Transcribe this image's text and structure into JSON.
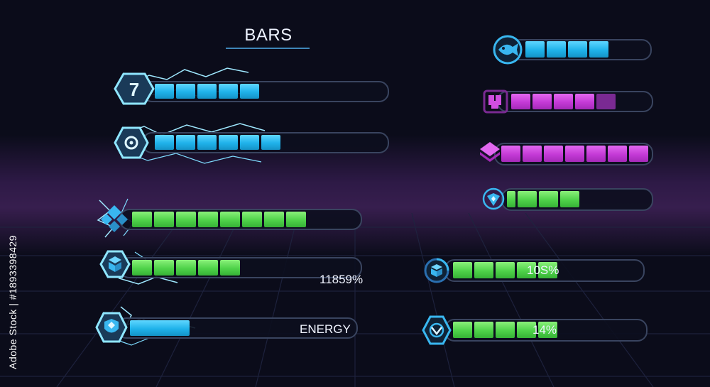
{
  "title": "BARS",
  "side_text": "Adobe Stock | #1893398429",
  "colors": {
    "background": "#0b0c1a",
    "blue": "#1fb2ea",
    "purple": "#c43ad6",
    "green": "#4fd24a",
    "track_border": "#39445f"
  },
  "bars": [
    {
      "icon": "number-seven-icon",
      "color": "blue",
      "filled_segments": 5,
      "total_segments": 11
    },
    {
      "icon": "target-icon",
      "color": "blue",
      "filled_segments": 6,
      "total_segments": 11
    },
    {
      "icon": "diamond-cluster-icon",
      "color": "green",
      "filled_segments": 8,
      "total_segments": 11
    },
    {
      "icon": "cube-stack-icon",
      "color": "green",
      "filled_segments": 5,
      "total_segments": 11,
      "label": "11859%"
    },
    {
      "icon": "shield-gem-icon",
      "color": "blue",
      "fill_fraction": 0.25,
      "label": "ENERGY"
    },
    {
      "icon": "fish-icon",
      "color": "blue",
      "filled_segments": 4,
      "total_segments": 6
    },
    {
      "icon": "pixel-heart-icon",
      "color": "purple",
      "filled_segments": 5,
      "total_segments": 7
    },
    {
      "icon": "layered-diamond-icon",
      "color": "purple",
      "filled_segments": 7,
      "total_segments": 7
    },
    {
      "icon": "emblem-icon",
      "color": "green",
      "filled_segments": 4,
      "total_segments": 7
    },
    {
      "icon": "crate-icon",
      "color": "green",
      "filled_segments": 5,
      "total_segments": 9,
      "label": "10S%"
    },
    {
      "icon": "crest-icon",
      "color": "green",
      "filled_segments": 5,
      "total_segments": 9,
      "label": "14%"
    }
  ]
}
